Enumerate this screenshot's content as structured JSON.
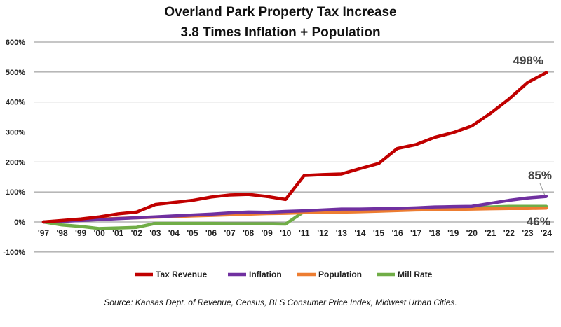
{
  "chart_data": {
    "type": "line",
    "title": [
      "Overland Park Property Tax Increase",
      "3.8 Times Inflation + Population"
    ],
    "categories": [
      "'97",
      "'98",
      "'99",
      "'00",
      "'01",
      "'02",
      "'03",
      "'04",
      "'05",
      "'06",
      "'07",
      "'08",
      "'09",
      "'10",
      "'11",
      "'12",
      "'13",
      "'14",
      "'15",
      "'16",
      "'17",
      "'18",
      "'19",
      "'20",
      "'21",
      "'22",
      "'23",
      "'24"
    ],
    "ylim": [
      -100,
      600
    ],
    "yticks": [
      -100,
      0,
      100,
      200,
      300,
      400,
      500,
      600
    ],
    "ytick_labels": [
      "-100%",
      "0%",
      "100%",
      "200%",
      "300%",
      "400%",
      "500%",
      "600%"
    ],
    "grid": true,
    "legend": "bottom",
    "series": [
      {
        "name": "Tax Revenue",
        "color": "#c00000",
        "values": [
          0,
          5,
          10,
          17,
          27,
          33,
          58,
          65,
          72,
          83,
          90,
          92,
          85,
          75,
          155,
          158,
          160,
          178,
          195,
          245,
          258,
          282,
          298,
          320,
          362,
          410,
          465,
          498
        ]
      },
      {
        "name": "Inflation",
        "color": "#7030a0",
        "values": [
          0,
          2,
          5,
          8,
          11,
          14,
          17,
          20,
          23,
          26,
          30,
          33,
          32,
          35,
          37,
          40,
          43,
          43,
          44,
          45,
          47,
          50,
          51,
          52,
          62,
          72,
          80,
          85
        ]
      },
      {
        "name": "Population",
        "color": "#ed7d31",
        "values": [
          0,
          4,
          7,
          10,
          12,
          14,
          16,
          18,
          20,
          22,
          24,
          26,
          28,
          29,
          31,
          32,
          33,
          34,
          36,
          38,
          40,
          41,
          42,
          43,
          44,
          45,
          45,
          46
        ]
      },
      {
        "name": "Mill Rate",
        "color": "#70ad47",
        "values": [
          0,
          -10,
          -15,
          -22,
          -20,
          -18,
          -5,
          -5,
          -5,
          -5,
          -6,
          -6,
          -6,
          -7,
          35,
          36,
          36,
          38,
          40,
          46,
          44,
          45,
          46,
          47,
          50,
          52,
          52,
          52
        ]
      }
    ],
    "annotations": [
      {
        "text": "498%",
        "series": "Tax Revenue",
        "x": "'24",
        "y": 498
      },
      {
        "text": "85%",
        "series": "Inflation",
        "x": "'24",
        "y": 85
      },
      {
        "text": "46%",
        "series": "Population",
        "x": "'24",
        "y": 46
      }
    ],
    "source": "Source: Kansas Dept. of Revenue, Census, BLS Consumer Price Index, Midwest Urban Cities."
  }
}
